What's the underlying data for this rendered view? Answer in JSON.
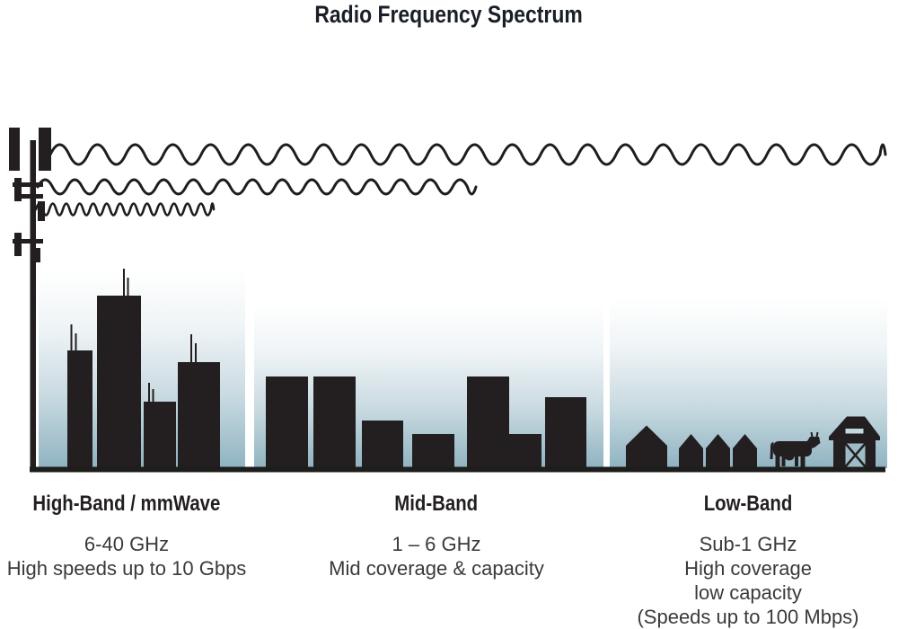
{
  "title": "Radio Frequency Spectrum",
  "bands": [
    {
      "id": "high-band",
      "heading": "High-Band / mmWave",
      "lines": [
        "6-40 GHz",
        "High speeds up to 10 Gbps"
      ],
      "scene": "city-skyscrapers-silhouette",
      "wave": "short-wavelength-wave"
    },
    {
      "id": "mid-band",
      "heading": "Mid-Band",
      "lines": [
        "1 – 6 GHz",
        "Mid coverage & capacity"
      ],
      "scene": "mid-rise-buildings-silhouette",
      "wave": "medium-wavelength-wave"
    },
    {
      "id": "low-band",
      "heading": "Low-Band",
      "lines": [
        "Sub-1 GHz",
        "High coverage",
        "low capacity",
        "(Speeds up to 100 Mbps)"
      ],
      "scene": "rural-houses-cow-barn-silhouette",
      "wave": "long-wavelength-wave"
    }
  ],
  "colors": {
    "silhouette": "#231f20",
    "wave_stroke": "#1d1d1b",
    "sky_gradient_bottom": "#8fb3c1",
    "title_text": "#1a1e28",
    "body_text": "#3a3a3a",
    "background": "#ffffff"
  }
}
